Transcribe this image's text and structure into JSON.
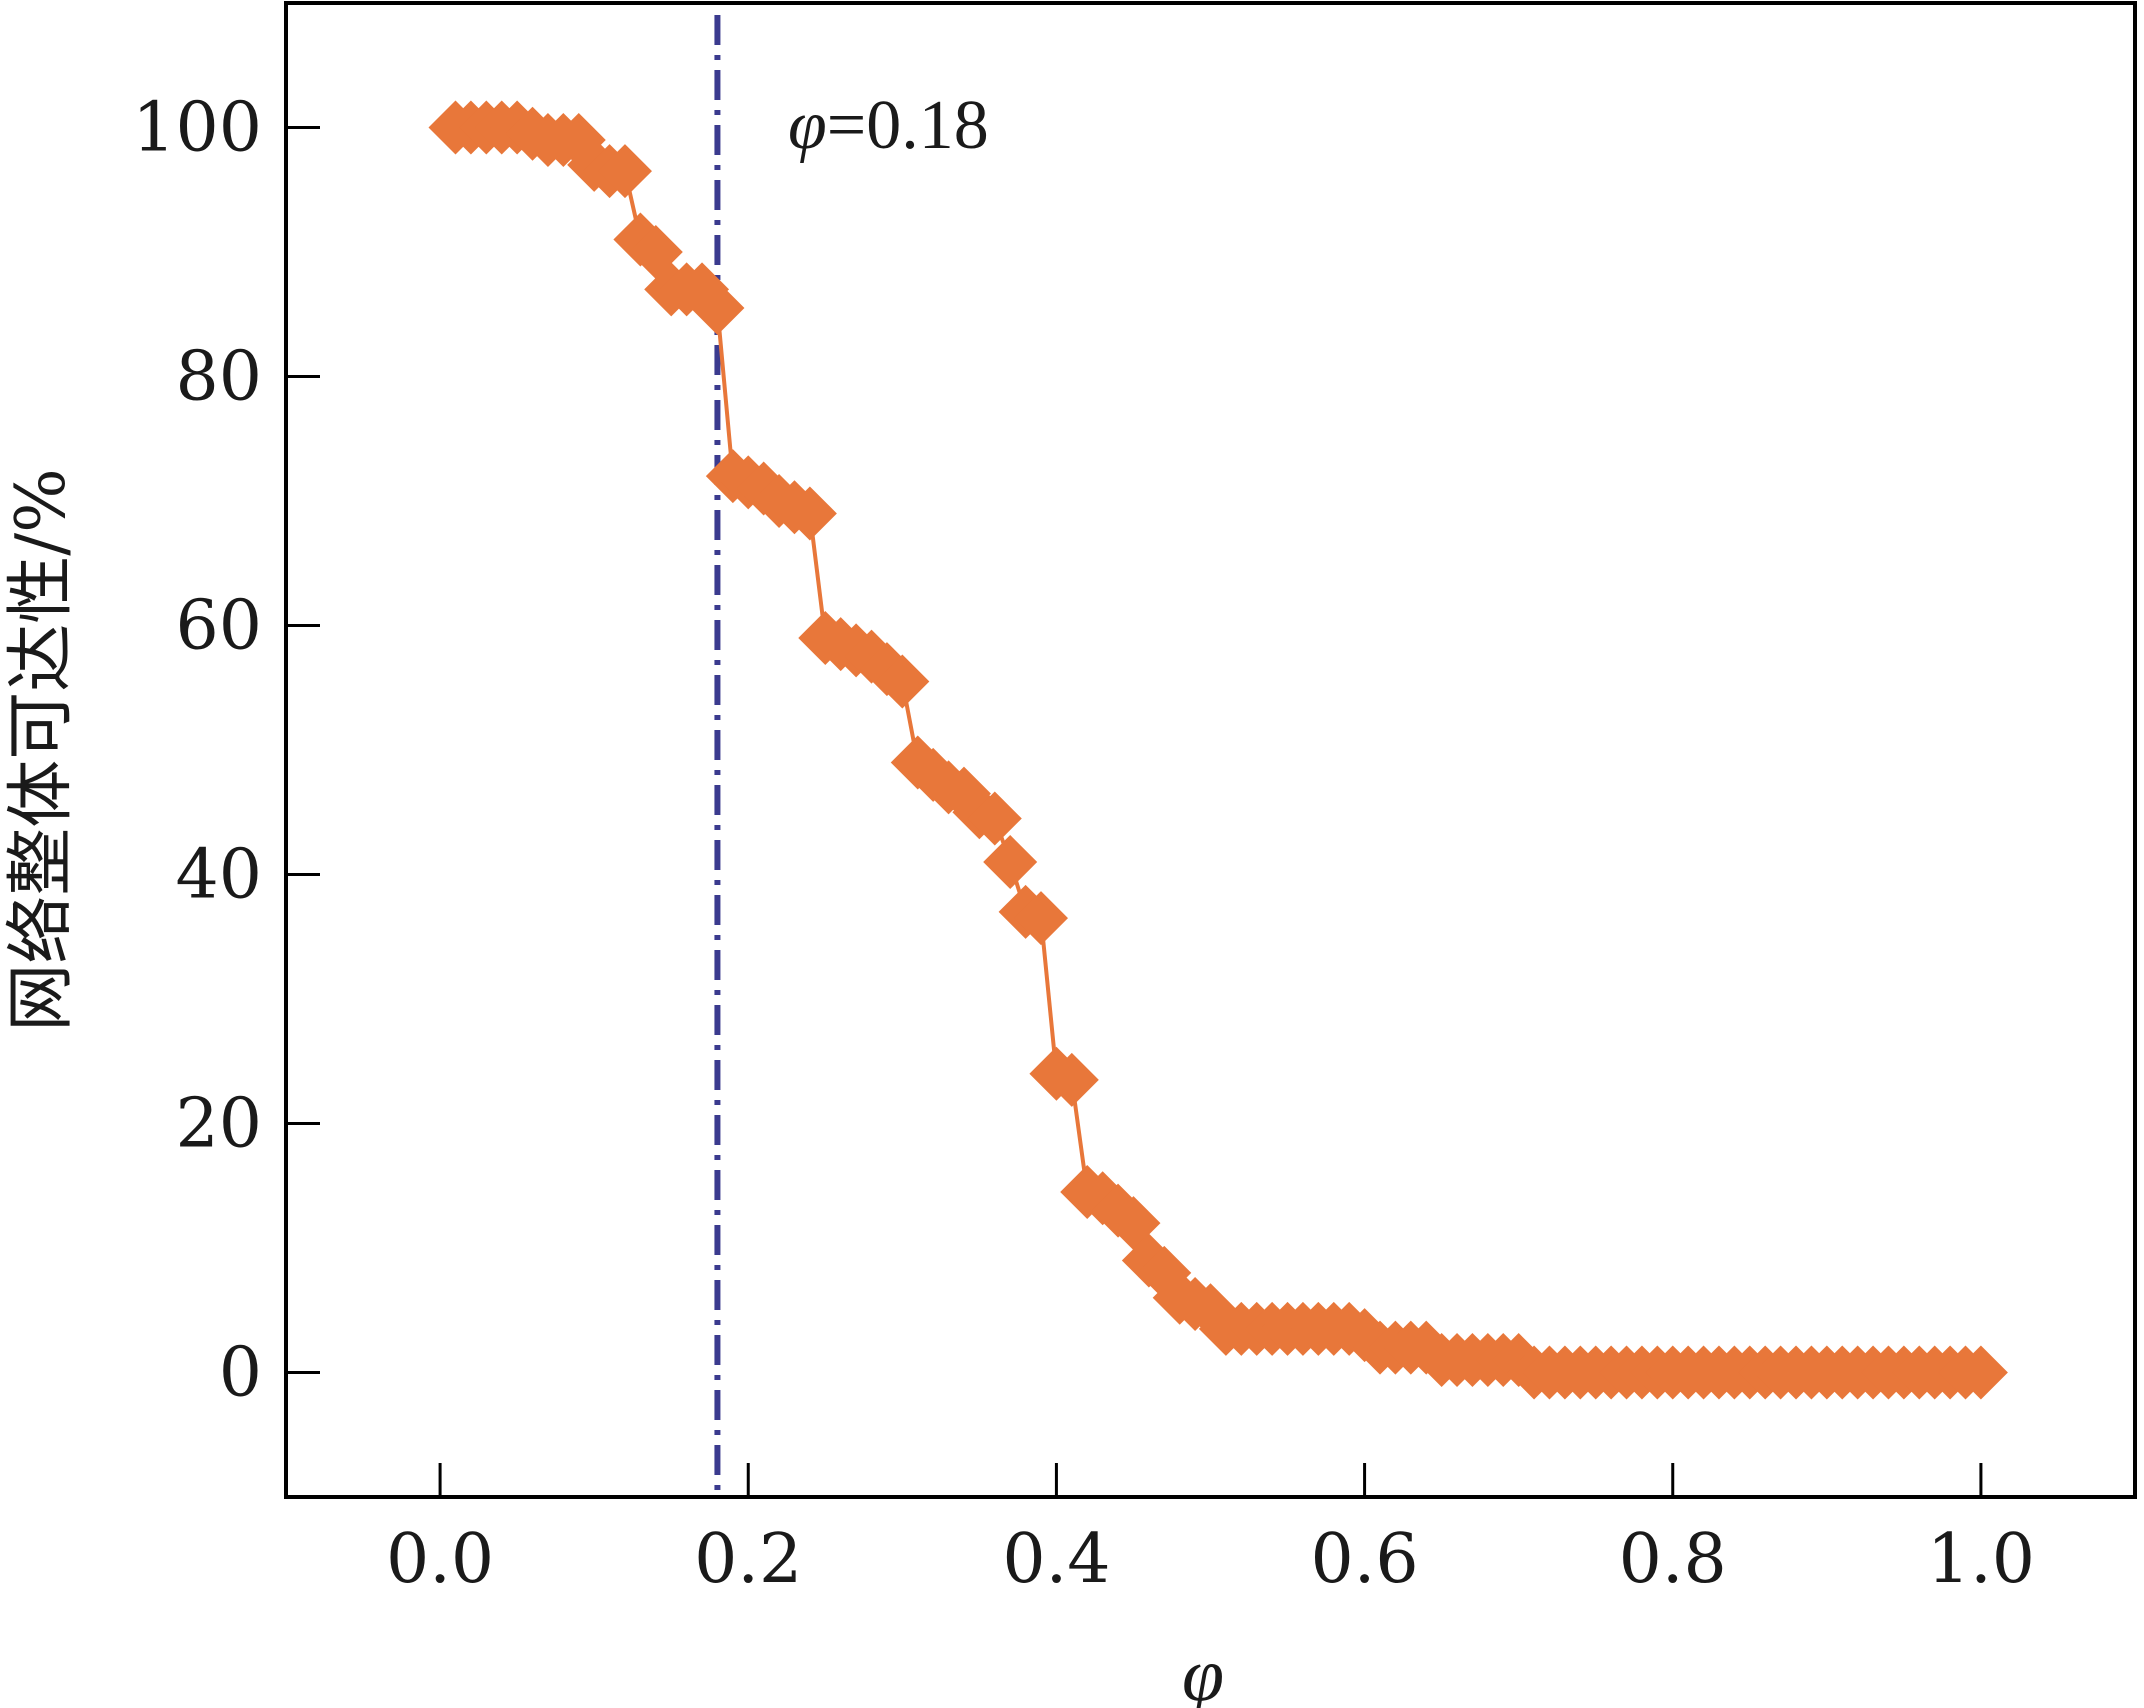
{
  "chart_data": {
    "type": "line",
    "title": "",
    "xlabel": "φ",
    "ylabel": "网络整体可达性/%",
    "xlim": [
      -0.1,
      1.1
    ],
    "ylim": [
      -10,
      110
    ],
    "xticks": [
      0.0,
      0.2,
      0.4,
      0.6,
      0.8,
      1.0
    ],
    "xtick_labels": [
      "0.0",
      "0.2",
      "0.4",
      "0.6",
      "0.8",
      "1.0"
    ],
    "yticks": [
      0,
      20,
      40,
      60,
      80,
      100
    ],
    "ytick_labels": [
      "0",
      "20",
      "40",
      "60",
      "80",
      "100"
    ],
    "grid": false,
    "legend": "none",
    "series": [
      {
        "color": "#e8773a",
        "marker": "diamond",
        "x": [
          0.01,
          0.02,
          0.03,
          0.04,
          0.05,
          0.06,
          0.07,
          0.08,
          0.09,
          0.1,
          0.11,
          0.12,
          0.13,
          0.14,
          0.15,
          0.16,
          0.17,
          0.18,
          0.19,
          0.2,
          0.21,
          0.22,
          0.23,
          0.24,
          0.25,
          0.26,
          0.27,
          0.28,
          0.29,
          0.3,
          0.31,
          0.32,
          0.33,
          0.34,
          0.35,
          0.36,
          0.37,
          0.38,
          0.39,
          0.4,
          0.41,
          0.42,
          0.43,
          0.44,
          0.45,
          0.46,
          0.47,
          0.48,
          0.49,
          0.5,
          0.51,
          0.52,
          0.53,
          0.54,
          0.55,
          0.56,
          0.57,
          0.58,
          0.59,
          0.6,
          0.61,
          0.62,
          0.63,
          0.64,
          0.65,
          0.66,
          0.67,
          0.68,
          0.69,
          0.7,
          0.71,
          0.72,
          0.73,
          0.74,
          0.75,
          0.76,
          0.77,
          0.78,
          0.79,
          0.8,
          0.81,
          0.82,
          0.83,
          0.84,
          0.85,
          0.86,
          0.87,
          0.88,
          0.89,
          0.9,
          0.91,
          0.92,
          0.93,
          0.94,
          0.95,
          0.96,
          0.97,
          0.98,
          0.99,
          1.0
        ],
        "y": [
          100,
          100,
          100,
          100,
          100,
          99.5,
          99,
          99,
          99,
          97,
          96.5,
          96.5,
          91,
          90,
          87,
          87,
          87,
          85.5,
          72,
          71.5,
          71,
          70,
          69.5,
          69,
          59,
          58.5,
          58,
          57.5,
          56.5,
          55.5,
          49,
          48,
          47,
          46.5,
          45,
          44.5,
          41,
          37,
          36.5,
          24,
          23.5,
          14.5,
          14,
          13,
          12,
          9,
          8,
          6,
          5.5,
          5,
          3.5,
          3.5,
          3.5,
          3.5,
          3.5,
          3.5,
          3.5,
          3.5,
          3.5,
          3,
          2,
          2,
          2,
          2,
          1,
          1,
          1,
          1,
          1,
          1,
          0,
          0,
          0,
          0,
          0,
          0,
          0,
          0,
          0,
          0,
          0,
          0,
          0,
          0,
          0,
          0,
          0,
          0,
          0,
          0,
          0,
          0,
          0,
          0,
          0,
          0,
          0,
          0,
          0,
          0
        ]
      }
    ],
    "annotations": [
      {
        "type": "vline",
        "x": 0.18,
        "color": "#3b3b8f",
        "style": "dash-dot",
        "label_var": "φ",
        "label_value": "=0.18"
      }
    ]
  }
}
